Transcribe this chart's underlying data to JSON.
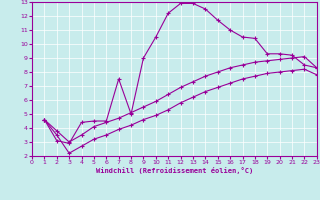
{
  "xlabel": "Windchill (Refroidissement éolien,°C)",
  "bg_color": "#c8ecec",
  "line_color": "#990099",
  "xlim": [
    0,
    23
  ],
  "ylim": [
    2,
    13
  ],
  "xticks": [
    0,
    1,
    2,
    3,
    4,
    5,
    6,
    7,
    8,
    9,
    10,
    11,
    12,
    13,
    14,
    15,
    16,
    17,
    18,
    19,
    20,
    21,
    22,
    23
  ],
  "yticks": [
    2,
    3,
    4,
    5,
    6,
    7,
    8,
    9,
    10,
    11,
    12,
    13
  ],
  "curve1_x": [
    1,
    2,
    3,
    4,
    5,
    6,
    7,
    8,
    9,
    10,
    11,
    12,
    13,
    14,
    15,
    16,
    17,
    18,
    19,
    20,
    21,
    22,
    23
  ],
  "curve1_y": [
    4.6,
    3.1,
    2.9,
    4.4,
    4.5,
    4.5,
    7.5,
    5.0,
    9.0,
    10.5,
    12.2,
    12.9,
    12.9,
    12.5,
    11.7,
    11.0,
    10.5,
    10.4,
    9.3,
    9.3,
    9.2,
    8.5,
    8.3
  ],
  "curve2_x": [
    1,
    2,
    3,
    4,
    5,
    6,
    7,
    8,
    9,
    10,
    11,
    12,
    13,
    14,
    15,
    16,
    17,
    18,
    19,
    20,
    21,
    22,
    23
  ],
  "curve2_y": [
    4.6,
    3.8,
    3.0,
    3.5,
    4.1,
    4.4,
    4.7,
    5.1,
    5.5,
    5.9,
    6.4,
    6.9,
    7.3,
    7.7,
    8.0,
    8.3,
    8.5,
    8.7,
    8.8,
    8.9,
    9.0,
    9.1,
    8.3
  ],
  "curve3_x": [
    1,
    2,
    3,
    4,
    5,
    6,
    7,
    8,
    9,
    10,
    11,
    12,
    13,
    14,
    15,
    16,
    17,
    18,
    19,
    20,
    21,
    22,
    23
  ],
  "curve3_y": [
    4.6,
    3.5,
    2.2,
    2.7,
    3.2,
    3.5,
    3.9,
    4.2,
    4.6,
    4.9,
    5.3,
    5.8,
    6.2,
    6.6,
    6.9,
    7.2,
    7.5,
    7.7,
    7.9,
    8.0,
    8.1,
    8.2,
    7.8
  ]
}
